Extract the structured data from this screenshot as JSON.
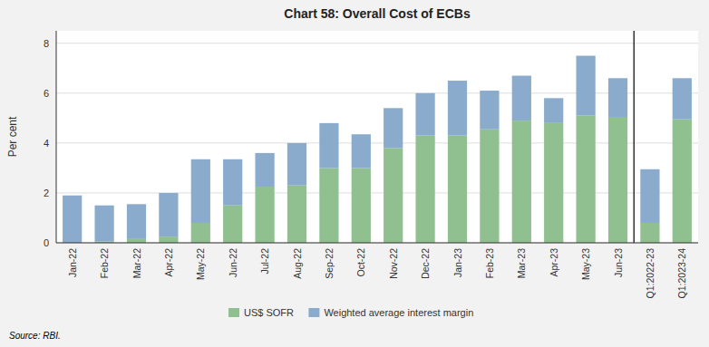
{
  "chart_data": {
    "type": "bar",
    "stacked": true,
    "title": "Chart 58: Overall Cost of ECBs",
    "y_label": "Per cent",
    "source": "Source: RBI.",
    "categories": [
      "Jan-22",
      "Feb-22",
      "Mar-22",
      "Apr-22",
      "May-22",
      "Jun-22",
      "Jul-22",
      "Aug-22",
      "Sep-22",
      "Oct-22",
      "Nov-22",
      "Dec-22",
      "Jan-23",
      "Feb-23",
      "Mar-23",
      "Apr-23",
      "May-23",
      "Jun-23",
      "Q1:2022-23",
      "Q1:2023-24"
    ],
    "series": [
      {
        "name": "US$ SOFR",
        "color": "#90c090",
        "values": [
          0.0,
          0.05,
          0.15,
          0.25,
          0.8,
          1.5,
          2.25,
          2.3,
          3.0,
          3.0,
          3.8,
          4.3,
          4.3,
          4.55,
          4.9,
          4.8,
          5.1,
          5.05,
          0.8,
          4.95
        ]
      },
      {
        "name": "Weighted average interest margin",
        "color": "#8aabcc",
        "values": [
          1.9,
          1.45,
          1.4,
          1.75,
          2.55,
          1.85,
          1.35,
          1.7,
          1.8,
          1.35,
          1.6,
          1.7,
          2.2,
          1.55,
          1.8,
          1.0,
          2.4,
          1.55,
          2.15,
          1.65
        ]
      }
    ],
    "divider_index": 17,
    "ylim": [
      0,
      8.5
    ],
    "yticks": [
      0,
      2,
      4,
      6,
      8
    ],
    "grid": true,
    "legend": "bottom"
  }
}
